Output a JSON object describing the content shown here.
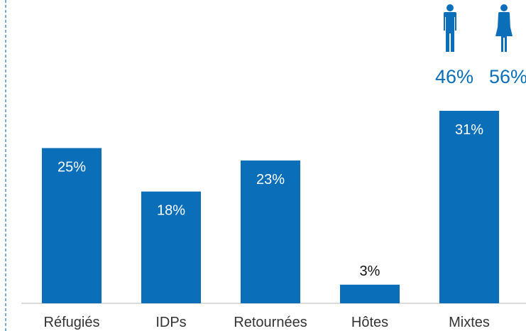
{
  "chart_data": {
    "type": "bar",
    "categories": [
      "Réfugiés",
      "IDPs",
      "Retournées",
      "Hôtes",
      "Mixtes"
    ],
    "values": [
      25,
      18,
      23,
      3,
      31
    ],
    "value_labels": [
      "25%",
      "18%",
      "23%",
      "3%",
      "31%"
    ],
    "unit": "%",
    "title": "",
    "xlabel": "",
    "ylabel": "",
    "ylim": [
      0,
      31
    ],
    "grid": false,
    "bar_color": "#0a6fb8"
  },
  "gender_breakdown": {
    "category": "Mixtes",
    "items": [
      {
        "icon": "male-icon",
        "label": "46%"
      },
      {
        "icon": "female-icon",
        "label": "56%"
      }
    ],
    "color": "#0a6fb8"
  },
  "colors": {
    "bar": "#0a6fb8",
    "axis": "#cfcfcf",
    "border": "#4a8fc7"
  }
}
